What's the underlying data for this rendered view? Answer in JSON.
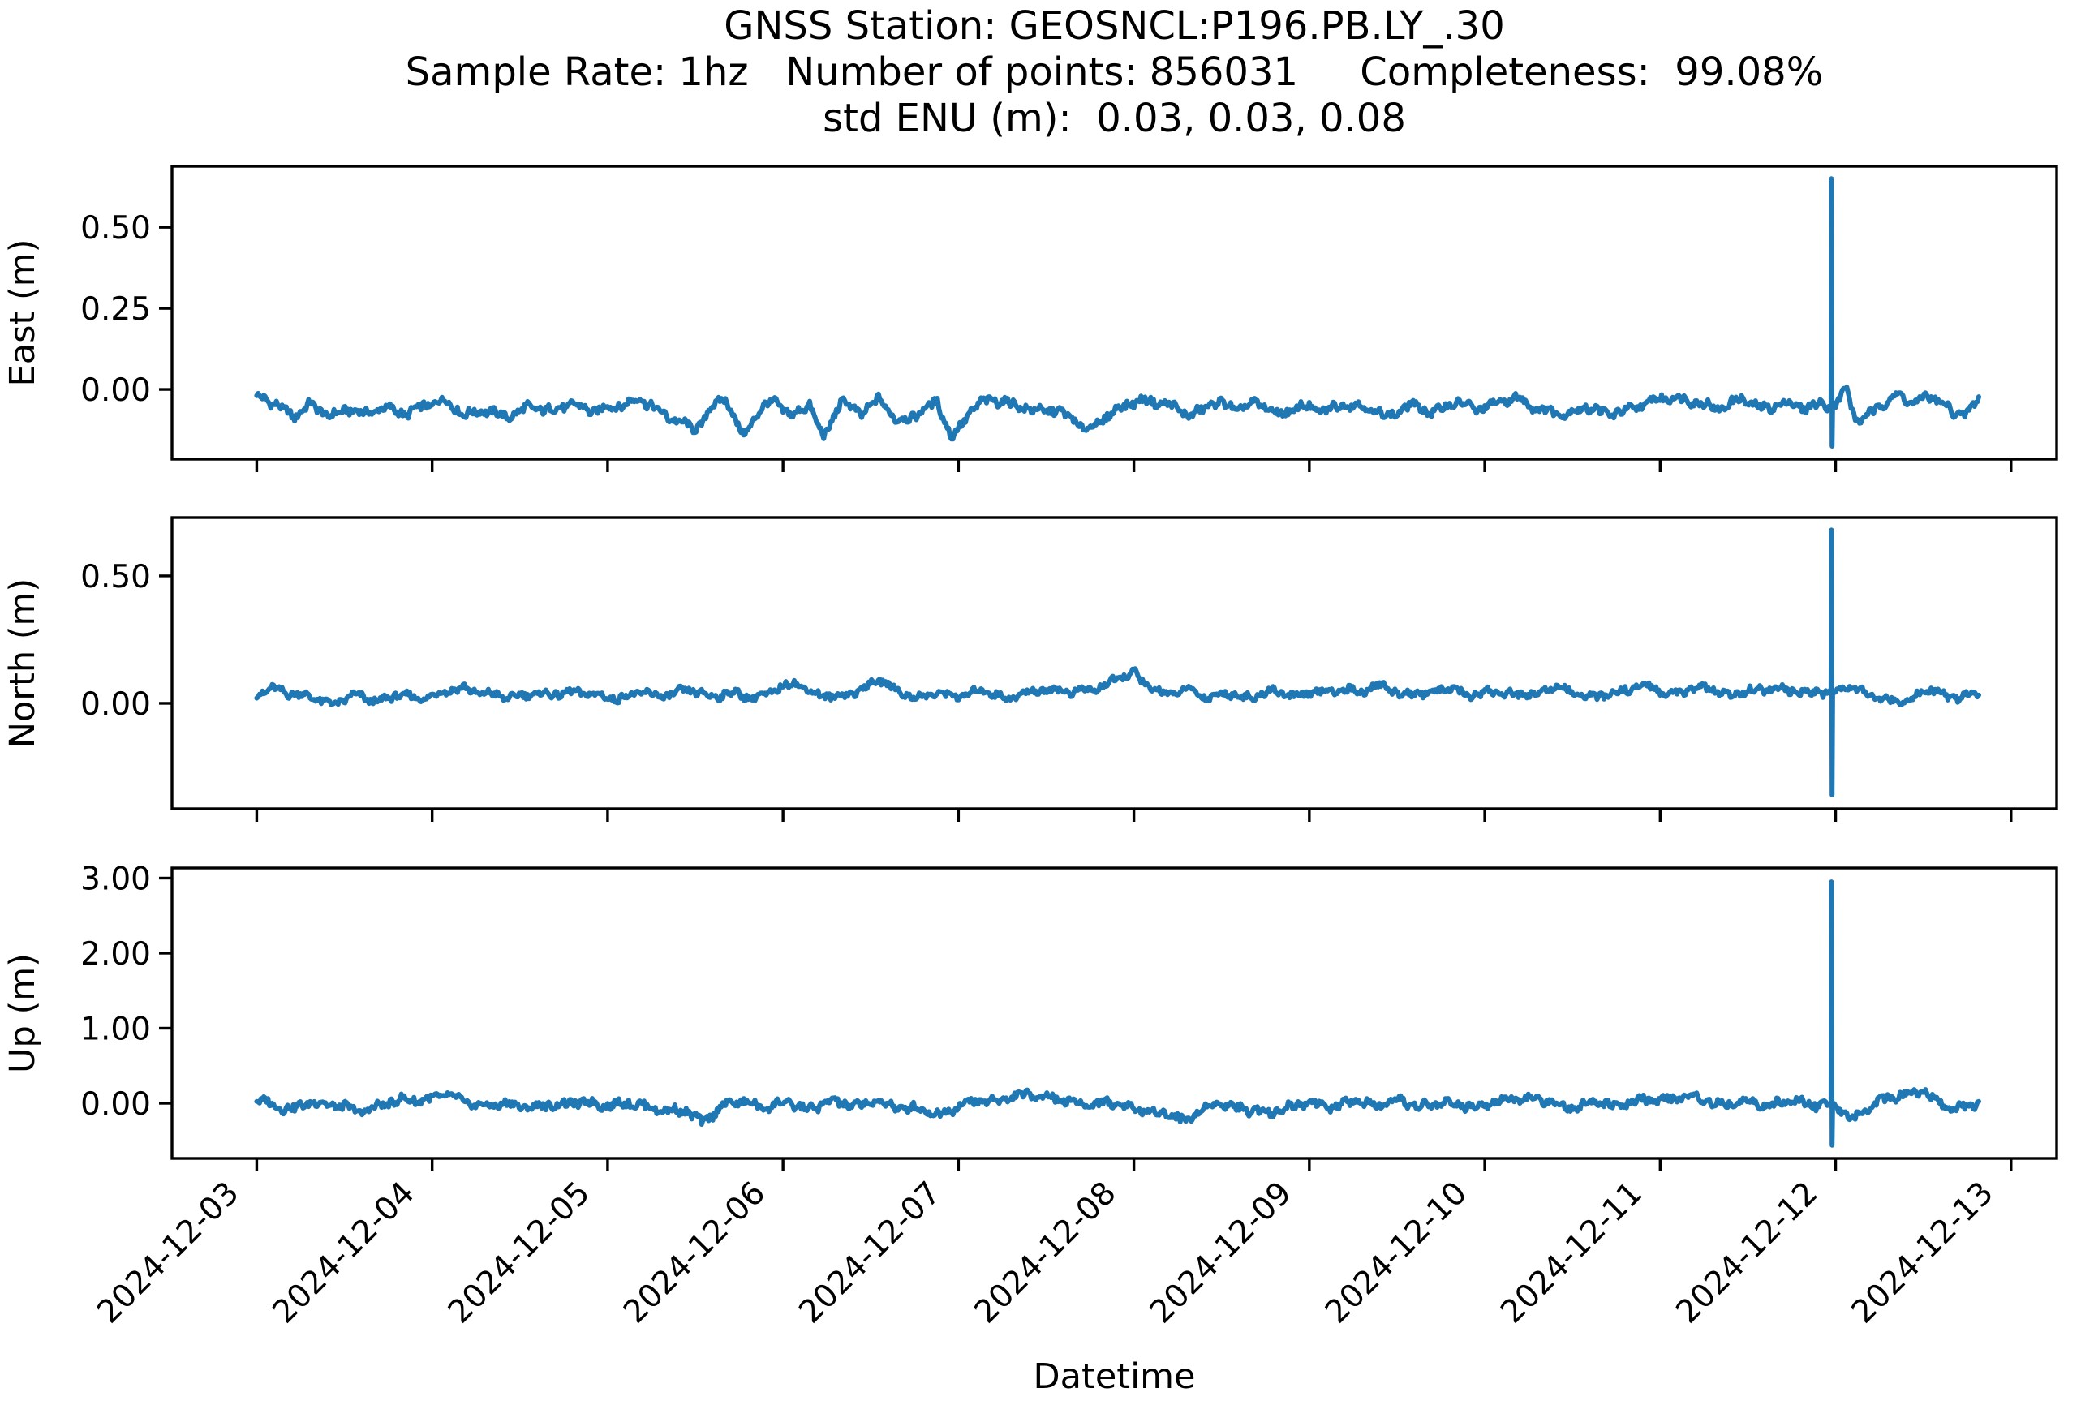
{
  "figure": {
    "background": "#ffffff",
    "axis_color": "#000000",
    "line_color": "#1f77b4"
  },
  "title": {
    "lines": [
      "GNSS Station: GEOSNCL:P196.PB.LY_.30",
      "Sample Rate: 1hz   Number of points: 856031     Completeness:  99.08%",
      "std ENU (m):  0.03, 0.03, 0.08"
    ]
  },
  "chart_data": {
    "type": "line",
    "title": "GNSS Station: GEOSNCL:P196.PB.LY_.30",
    "subtitle": "Sample Rate: 1hz   Number of points: 856031     Completeness:  99.08%",
    "subtitle2": "std ENU (m):  0.03, 0.03, 0.08",
    "station": "GEOSNCL:P196.PB.LY_.30",
    "sample_rate": "1hz",
    "number_of_points": "856031",
    "completeness": "99.08%",
    "std_enu_m": "0.03, 0.03, 0.08",
    "xlabel": "Datetime",
    "grid": false,
    "legend": null,
    "line_color": "#1f77b4",
    "x_tick_labels": [
      "2024-12-03",
      "2024-12-04",
      "2024-12-05",
      "2024-12-06",
      "2024-12-07",
      "2024-12-08",
      "2024-12-09",
      "2024-12-10",
      "2024-12-11",
      "2024-12-12",
      "2024-12-13"
    ],
    "x_axis": {
      "min_day": -0.483,
      "max_day": 10.26,
      "tick_days": [
        0,
        1,
        2,
        3,
        4,
        5,
        6,
        7,
        8,
        9,
        10
      ]
    },
    "data_day_range": [
      0,
      9.82
    ],
    "spike_event": {
      "day": 8.97,
      "note": "large transient near 2024-12-12 in all three components"
    },
    "subplots": [
      {
        "id": "east",
        "ylabel": "East (m)",
        "ylim": [
          -0.215,
          0.688
        ],
        "yticks": [
          {
            "value": 0.5,
            "label": "0.50"
          },
          {
            "value": 0.25,
            "label": "0.25"
          },
          {
            "value": 0.0,
            "label": "0.00"
          }
        ],
        "noise_amp": 0.02,
        "seed": 1,
        "spike": {
          "day": 8.97,
          "top": 0.65,
          "bottom": -0.175
        },
        "mean_waypoints": [
          [
            0,
            -0.02
          ],
          [
            0.12,
            -0.05
          ],
          [
            0.22,
            -0.08
          ],
          [
            0.3,
            -0.05
          ],
          [
            0.42,
            -0.08
          ],
          [
            0.52,
            -0.06
          ],
          [
            0.62,
            -0.08
          ],
          [
            0.72,
            -0.05
          ],
          [
            0.85,
            -0.08
          ],
          [
            0.95,
            -0.05
          ],
          [
            1.05,
            -0.03
          ],
          [
            1.18,
            -0.08
          ],
          [
            1.3,
            -0.06
          ],
          [
            1.42,
            -0.09
          ],
          [
            1.55,
            -0.05
          ],
          [
            1.68,
            -0.07
          ],
          [
            1.8,
            -0.04
          ],
          [
            1.92,
            -0.07
          ],
          [
            2.05,
            -0.05
          ],
          [
            2.18,
            -0.03
          ],
          [
            2.3,
            -0.07
          ],
          [
            2.42,
            -0.1
          ],
          [
            2.5,
            -0.13
          ],
          [
            2.6,
            -0.05
          ],
          [
            2.67,
            -0.02
          ],
          [
            2.77,
            -0.15
          ],
          [
            2.87,
            -0.06
          ],
          [
            2.95,
            -0.03
          ],
          [
            3.05,
            -0.09
          ],
          [
            3.15,
            -0.04
          ],
          [
            3.23,
            -0.15
          ],
          [
            3.33,
            -0.04
          ],
          [
            3.45,
            -0.07
          ],
          [
            3.55,
            -0.03
          ],
          [
            3.65,
            -0.1
          ],
          [
            3.78,
            -0.07
          ],
          [
            3.88,
            -0.04
          ],
          [
            3.96,
            -0.15
          ],
          [
            4.06,
            -0.07
          ],
          [
            4.18,
            -0.03
          ],
          [
            4.3,
            -0.04
          ],
          [
            4.42,
            -0.07
          ],
          [
            4.55,
            -0.06
          ],
          [
            4.65,
            -0.09
          ],
          [
            4.72,
            -0.13
          ],
          [
            4.82,
            -0.09
          ],
          [
            4.95,
            -0.05
          ],
          [
            5.08,
            -0.03
          ],
          [
            5.2,
            -0.05
          ],
          [
            5.32,
            -0.08
          ],
          [
            5.45,
            -0.04
          ],
          [
            5.58,
            -0.06
          ],
          [
            5.7,
            -0.04
          ],
          [
            5.82,
            -0.08
          ],
          [
            5.95,
            -0.05
          ],
          [
            6.08,
            -0.07
          ],
          [
            6.2,
            -0.04
          ],
          [
            6.32,
            -0.06
          ],
          [
            6.45,
            -0.08
          ],
          [
            6.58,
            -0.05
          ],
          [
            6.7,
            -0.07
          ],
          [
            6.82,
            -0.04
          ],
          [
            6.95,
            -0.06
          ],
          [
            7.08,
            -0.04
          ],
          [
            7.2,
            -0.03
          ],
          [
            7.32,
            -0.06
          ],
          [
            7.45,
            -0.08
          ],
          [
            7.58,
            -0.05
          ],
          [
            7.7,
            -0.08
          ],
          [
            7.82,
            -0.06
          ],
          [
            7.95,
            -0.04
          ],
          [
            8.08,
            -0.02
          ],
          [
            8.2,
            -0.04
          ],
          [
            8.32,
            -0.06
          ],
          [
            8.45,
            -0.03
          ],
          [
            8.58,
            -0.06
          ],
          [
            8.7,
            -0.04
          ],
          [
            8.82,
            -0.06
          ],
          [
            8.92,
            -0.04
          ],
          [
            9.0,
            -0.05
          ],
          [
            9.06,
            0.0
          ],
          [
            9.12,
            -0.1
          ],
          [
            9.2,
            -0.07
          ],
          [
            9.28,
            -0.04
          ],
          [
            9.36,
            -0.02
          ],
          [
            9.44,
            -0.04
          ],
          [
            9.52,
            -0.02
          ],
          [
            9.6,
            -0.04
          ],
          [
            9.68,
            -0.08
          ],
          [
            9.76,
            -0.06
          ],
          [
            9.82,
            -0.03
          ]
        ]
      },
      {
        "id": "north",
        "ylabel": "North (m)",
        "ylim": [
          -0.414,
          0.729
        ],
        "yticks": [
          {
            "value": 0.5,
            "label": "0.50"
          },
          {
            "value": 0.0,
            "label": "0.00"
          }
        ],
        "noise_amp": 0.022,
        "seed": 2,
        "spike": {
          "day": 8.97,
          "top": 0.68,
          "bottom": -0.36
        },
        "mean_waypoints": [
          [
            0,
            0.03
          ],
          [
            0.1,
            0.06
          ],
          [
            0.2,
            0.04
          ],
          [
            0.32,
            0.02
          ],
          [
            0.45,
            0.0
          ],
          [
            0.55,
            0.03
          ],
          [
            0.68,
            0.01
          ],
          [
            0.8,
            0.03
          ],
          [
            0.92,
            0.02
          ],
          [
            1.05,
            0.04
          ],
          [
            1.18,
            0.06
          ],
          [
            1.3,
            0.04
          ],
          [
            1.42,
            0.02
          ],
          [
            1.55,
            0.04
          ],
          [
            1.68,
            0.03
          ],
          [
            1.8,
            0.05
          ],
          [
            1.92,
            0.03
          ],
          [
            2.05,
            0.02
          ],
          [
            2.18,
            0.04
          ],
          [
            2.3,
            0.03
          ],
          [
            2.45,
            0.05
          ],
          [
            2.58,
            0.03
          ],
          [
            2.7,
            0.04
          ],
          [
            2.82,
            0.02
          ],
          [
            2.95,
            0.05
          ],
          [
            3.08,
            0.08
          ],
          [
            3.18,
            0.04
          ],
          [
            3.3,
            0.02
          ],
          [
            3.42,
            0.05
          ],
          [
            3.55,
            0.09
          ],
          [
            3.65,
            0.05
          ],
          [
            3.78,
            0.02
          ],
          [
            3.9,
            0.04
          ],
          [
            4.02,
            0.03
          ],
          [
            4.15,
            0.05
          ],
          [
            4.28,
            0.02
          ],
          [
            4.4,
            0.04
          ],
          [
            4.52,
            0.06
          ],
          [
            4.65,
            0.04
          ],
          [
            4.78,
            0.06
          ],
          [
            4.9,
            0.09
          ],
          [
            5.0,
            0.12
          ],
          [
            5.1,
            0.06
          ],
          [
            5.2,
            0.03
          ],
          [
            5.32,
            0.06
          ],
          [
            5.42,
            0.02
          ],
          [
            5.55,
            0.04
          ],
          [
            5.68,
            0.02
          ],
          [
            5.8,
            0.05
          ],
          [
            5.92,
            0.03
          ],
          [
            6.05,
            0.04
          ],
          [
            6.18,
            0.06
          ],
          [
            6.3,
            0.04
          ],
          [
            6.42,
            0.08
          ],
          [
            6.52,
            0.03
          ],
          [
            6.65,
            0.04
          ],
          [
            6.78,
            0.06
          ],
          [
            6.9,
            0.03
          ],
          [
            7.02,
            0.05
          ],
          [
            7.15,
            0.03
          ],
          [
            7.28,
            0.04
          ],
          [
            7.4,
            0.06
          ],
          [
            7.52,
            0.04
          ],
          [
            7.65,
            0.02
          ],
          [
            7.78,
            0.05
          ],
          [
            7.9,
            0.07
          ],
          [
            8.02,
            0.04
          ],
          [
            8.15,
            0.05
          ],
          [
            8.28,
            0.06
          ],
          [
            8.4,
            0.03
          ],
          [
            8.52,
            0.05
          ],
          [
            8.65,
            0.06
          ],
          [
            8.78,
            0.04
          ],
          [
            8.9,
            0.05
          ],
          [
            9.0,
            0.04
          ],
          [
            9.08,
            0.07
          ],
          [
            9.16,
            0.05
          ],
          [
            9.25,
            0.02
          ],
          [
            9.35,
            0.0
          ],
          [
            9.45,
            0.03
          ],
          [
            9.55,
            0.05
          ],
          [
            9.65,
            0.02
          ],
          [
            9.75,
            0.04
          ],
          [
            9.82,
            0.03
          ]
        ]
      },
      {
        "id": "up",
        "ylabel": "Up (m)",
        "ylim": [
          -0.735,
          3.135
        ],
        "yticks": [
          {
            "value": 3.0,
            "label": "3.00"
          },
          {
            "value": 2.0,
            "label": "2.00"
          },
          {
            "value": 1.0,
            "label": "1.00"
          },
          {
            "value": 0.0,
            "label": "0.00"
          }
        ],
        "noise_amp": 0.085,
        "seed": 3,
        "spike": {
          "day": 8.97,
          "top": 2.95,
          "bottom": -0.56
        },
        "mean_waypoints": [
          [
            0,
            0.05
          ],
          [
            0.1,
            -0.02
          ],
          [
            0.22,
            -0.08
          ],
          [
            0.32,
            0.02
          ],
          [
            0.45,
            -0.02
          ],
          [
            0.58,
            -0.12
          ],
          [
            0.7,
            -0.02
          ],
          [
            0.82,
            0.03
          ],
          [
            0.95,
            0.06
          ],
          [
            1.08,
            0.1
          ],
          [
            1.2,
            0.02
          ],
          [
            1.32,
            -0.05
          ],
          [
            1.45,
            0.0
          ],
          [
            1.58,
            -0.06
          ],
          [
            1.7,
            -0.02
          ],
          [
            1.82,
            0.02
          ],
          [
            1.95,
            -0.03
          ],
          [
            2.08,
            0.01
          ],
          [
            2.2,
            -0.04
          ],
          [
            2.32,
            -0.08
          ],
          [
            2.45,
            -0.12
          ],
          [
            2.54,
            -0.25
          ],
          [
            2.65,
            -0.03
          ],
          [
            2.78,
            0.02
          ],
          [
            2.9,
            -0.05
          ],
          [
            3.02,
            0.0
          ],
          [
            3.15,
            -0.07
          ],
          [
            3.28,
            0.02
          ],
          [
            3.4,
            -0.02
          ],
          [
            3.52,
            0.01
          ],
          [
            3.65,
            -0.04
          ],
          [
            3.78,
            -0.08
          ],
          [
            3.88,
            -0.16
          ],
          [
            3.98,
            -0.04
          ],
          [
            4.1,
            0.02
          ],
          [
            4.22,
            0.05
          ],
          [
            4.35,
            0.09
          ],
          [
            4.48,
            0.12
          ],
          [
            4.58,
            0.05
          ],
          [
            4.7,
            -0.02
          ],
          [
            4.82,
            0.02
          ],
          [
            4.95,
            -0.04
          ],
          [
            5.08,
            -0.1
          ],
          [
            5.2,
            -0.16
          ],
          [
            5.3,
            -0.22
          ],
          [
            5.4,
            -0.06
          ],
          [
            5.52,
            0.0
          ],
          [
            5.65,
            -0.08
          ],
          [
            5.78,
            -0.13
          ],
          [
            5.88,
            -0.04
          ],
          [
            6.0,
            0.01
          ],
          [
            6.12,
            -0.05
          ],
          [
            6.25,
            0.02
          ],
          [
            6.38,
            -0.03
          ],
          [
            6.5,
            0.02
          ],
          [
            6.62,
            -0.04
          ],
          [
            6.75,
            0.01
          ],
          [
            6.88,
            -0.04
          ],
          [
            7.0,
            0.0
          ],
          [
            7.12,
            0.04
          ],
          [
            7.25,
            0.08
          ],
          [
            7.38,
            0.0
          ],
          [
            7.5,
            -0.05
          ],
          [
            7.62,
            0.02
          ],
          [
            7.75,
            -0.03
          ],
          [
            7.88,
            0.03
          ],
          [
            8.0,
            0.05
          ],
          [
            8.12,
            0.09
          ],
          [
            8.25,
            0.04
          ],
          [
            8.38,
            -0.02
          ],
          [
            8.5,
            0.02
          ],
          [
            8.62,
            -0.03
          ],
          [
            8.75,
            0.02
          ],
          [
            8.88,
            0.0
          ],
          [
            9.0,
            -0.03
          ],
          [
            9.1,
            -0.22
          ],
          [
            9.18,
            -0.08
          ],
          [
            9.28,
            0.05
          ],
          [
            9.38,
            0.12
          ],
          [
            9.48,
            0.18
          ],
          [
            9.58,
            0.02
          ],
          [
            9.68,
            -0.06
          ],
          [
            9.78,
            -0.02
          ],
          [
            9.82,
            0.01
          ]
        ]
      }
    ]
  }
}
